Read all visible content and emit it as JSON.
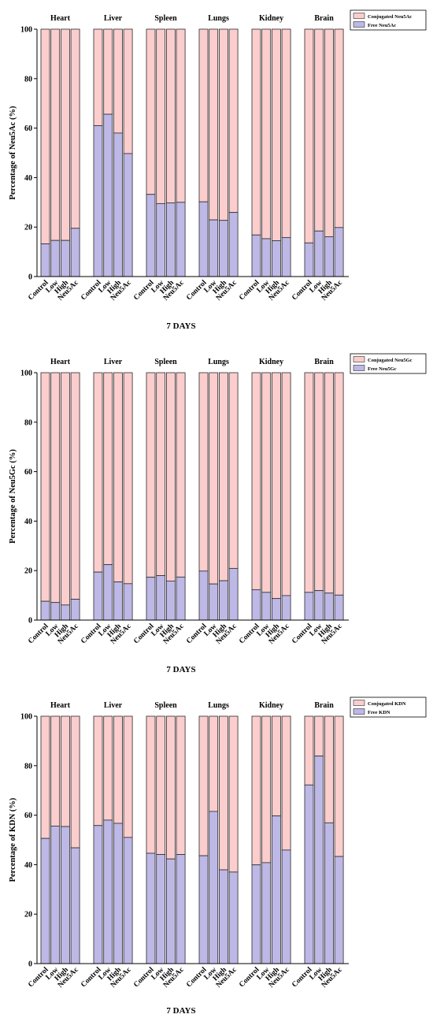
{
  "colors": {
    "conjugated": "#fbcdcd",
    "free": "#bdb8e6",
    "bar_edge": "#2a2a2a",
    "axis": "#000000"
  },
  "chart_data": [
    {
      "type": "bar",
      "stacked": true,
      "panel_type": "grouped-stacked-percentage-bar",
      "groups": [
        "Heart",
        "Liver",
        "Spleen",
        "Lungs",
        "Kidney",
        "Brain"
      ],
      "categories": [
        "Control",
        "Low",
        "High",
        "Neu5Ac"
      ],
      "ylabel": "Percentage of Neu5Ac (%)",
      "xlabel": "7 DAYS",
      "ylim": [
        0,
        100
      ],
      "yticks": [
        0,
        20,
        40,
        60,
        80,
        100
      ],
      "legend_position": "top-right",
      "series": [
        {
          "name": "Conjugated Neu5Ac",
          "role": "conjugated"
        },
        {
          "name": "Free Neu5Ac",
          "role": "free",
          "values": [
            [
              13.2,
              14.6,
              14.6,
              19.5
            ],
            [
              61.0,
              65.6,
              58.0,
              49.7
            ],
            [
              33.2,
              29.5,
              29.8,
              30.0
            ],
            [
              30.2,
              22.9,
              22.7,
              25.9
            ],
            [
              16.8,
              15.3,
              14.5,
              15.8
            ],
            [
              13.6,
              18.4,
              16.1,
              19.8
            ]
          ]
        }
      ]
    },
    {
      "type": "bar",
      "stacked": true,
      "panel_type": "grouped-stacked-percentage-bar",
      "groups": [
        "Heart",
        "Liver",
        "Spleen",
        "Lungs",
        "Kidney",
        "Brain"
      ],
      "categories": [
        "Control",
        "Low",
        "High",
        "Neu5Ac"
      ],
      "ylabel": "Percentage of Neu5Gc (%)",
      "xlabel": "7 DAYS",
      "ylim": [
        0,
        100
      ],
      "yticks": [
        0,
        20,
        40,
        60,
        80,
        100
      ],
      "legend_position": "top-right",
      "series": [
        {
          "name": "Conjugated Neu5Gc",
          "role": "conjugated"
        },
        {
          "name": "Free Neu5Gc",
          "role": "free",
          "values": [
            [
              7.6,
              7.1,
              6.1,
              8.4
            ],
            [
              19.4,
              22.4,
              15.4,
              14.7
            ],
            [
              17.3,
              18.0,
              15.8,
              17.4
            ],
            [
              19.8,
              14.6,
              15.9,
              20.9
            ],
            [
              12.3,
              11.2,
              8.7,
              9.9
            ],
            [
              11.2,
              11.9,
              10.9,
              10.1
            ]
          ]
        }
      ]
    },
    {
      "type": "bar",
      "stacked": true,
      "panel_type": "grouped-stacked-percentage-bar",
      "groups": [
        "Heart",
        "Liver",
        "Spleen",
        "Lungs",
        "Kidney",
        "Brain"
      ],
      "categories": [
        "Control",
        "Low",
        "High",
        "Neu5Ac"
      ],
      "ylabel": "Percentage of KDN (%)",
      "xlabel": "7 DAYS",
      "ylim": [
        0,
        100
      ],
      "yticks": [
        0,
        20,
        40,
        60,
        80,
        100
      ],
      "legend_position": "top-right",
      "series": [
        {
          "name": "Conjugated KDN",
          "role": "conjugated"
        },
        {
          "name": "Free KDN",
          "role": "free",
          "values": [
            [
              50.6,
              55.6,
              55.4,
              46.8
            ],
            [
              55.8,
              58.0,
              56.7,
              51.0
            ],
            [
              44.6,
              44.1,
              42.3,
              44.1
            ],
            [
              43.6,
              61.5,
              37.9,
              37.0
            ],
            [
              39.9,
              40.8,
              59.7,
              45.9
            ],
            [
              72.2,
              83.9,
              56.9,
              43.3
            ]
          ]
        }
      ]
    }
  ]
}
